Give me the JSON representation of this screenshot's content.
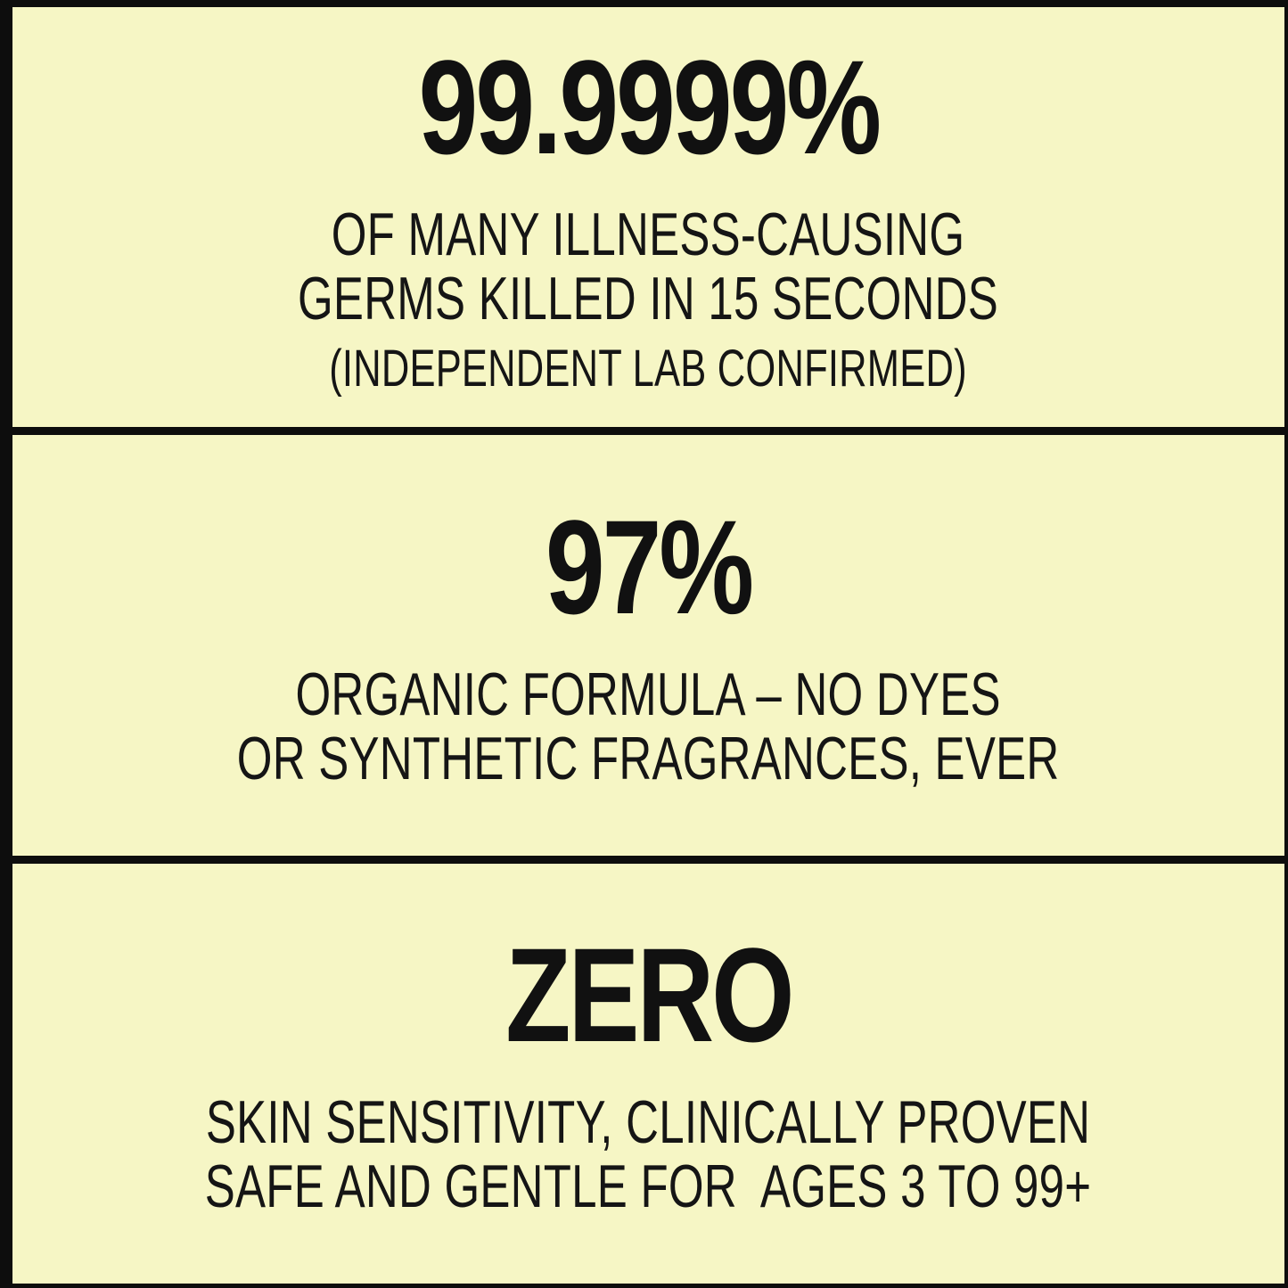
{
  "colors": {
    "panel_background": "#f6f6c5",
    "border": "#0d0d0d",
    "text": "#151515"
  },
  "panels": [
    {
      "stat": "99.9999%",
      "line1": "OF MANY ILLNESS-CAUSING",
      "line2": "GERMS KILLED IN 15 SECONDS",
      "note": "(INDEPENDENT LAB CONFIRMED)"
    },
    {
      "stat": "97%",
      "line1": "ORGANIC FORMULA – NO DYES",
      "line2": "OR SYNTHETIC FRAGRANCES, EVER"
    },
    {
      "stat": "ZERO",
      "line1": "SKIN SENSITIVITY, CLINICALLY PROVEN",
      "line2": "SAFE AND GENTLE FOR  AGES 3 TO 99+"
    }
  ]
}
